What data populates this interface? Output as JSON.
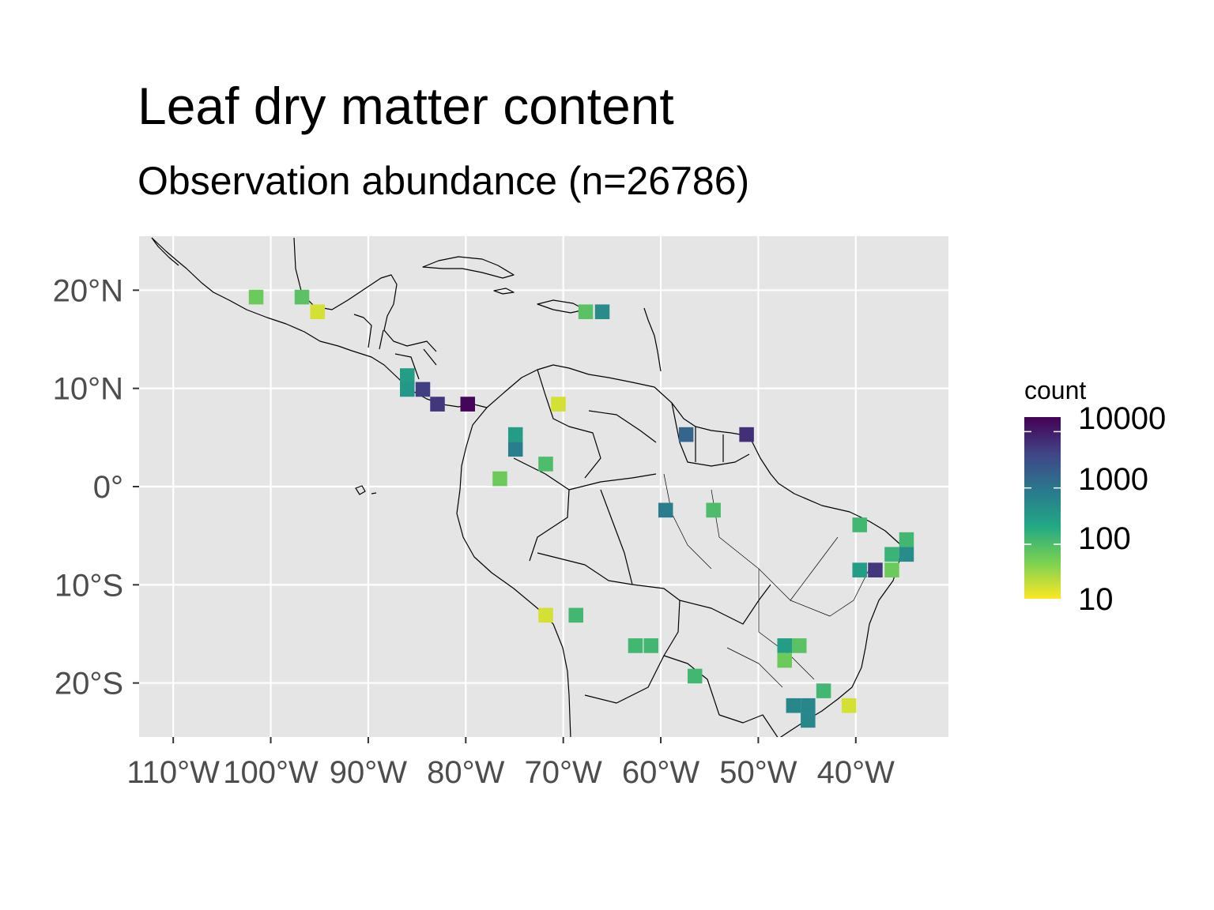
{
  "title": "Leaf dry matter content",
  "subtitle": "Observation abundance (n=26786)",
  "map": {
    "lon_range": [
      -113.5,
      -30.5
    ],
    "lat_range": [
      -25.5,
      25.5
    ],
    "lon_ticks": [
      -110,
      -100,
      -90,
      -80,
      -70,
      -60,
      -50,
      -40
    ],
    "lon_tick_labels": [
      "110°W",
      "100°W",
      "90°W",
      "80°W",
      "70°W",
      "60°W",
      "50°W",
      "40°W"
    ],
    "lat_ticks": [
      20,
      10,
      0,
      -10,
      -20
    ],
    "lat_tick_labels": [
      "20°N",
      "10°N",
      "0°",
      "10°S",
      "20°S"
    ],
    "panel_background": "#e5e5e5",
    "grid_color": "#ffffff",
    "bin_size_deg": 1.5
  },
  "legend": {
    "title": "count",
    "labels": [
      "10000",
      "1000",
      "100",
      "10"
    ],
    "scale": "log10",
    "range": [
      5,
      10000
    ],
    "colors": [
      "#fde725",
      "#7ad151",
      "#22a884",
      "#2a788e",
      "#414487",
      "#440154"
    ]
  },
  "chart_data": {
    "type": "heatmap",
    "title": "Leaf dry matter content",
    "subtitle": "Observation abundance (n=26786)",
    "fill": "count",
    "bins": [
      {
        "lon": -101.5,
        "lat": 19.3,
        "count": 30
      },
      {
        "lon": -96.8,
        "lat": 19.3,
        "count": 40
      },
      {
        "lon": -95.2,
        "lat": 17.8,
        "count": 8
      },
      {
        "lon": -67.7,
        "lat": 17.8,
        "count": 40
      },
      {
        "lon": -66.0,
        "lat": 17.8,
        "count": 250
      },
      {
        "lon": -86.0,
        "lat": 11.3,
        "count": 150
      },
      {
        "lon": -86.0,
        "lat": 9.9,
        "count": 180
      },
      {
        "lon": -84.4,
        "lat": 9.9,
        "count": 2500
      },
      {
        "lon": -82.9,
        "lat": 8.4,
        "count": 3000
      },
      {
        "lon": -79.8,
        "lat": 8.4,
        "count": 9000
      },
      {
        "lon": -70.5,
        "lat": 8.4,
        "count": 8
      },
      {
        "lon": -74.9,
        "lat": 5.3,
        "count": 150
      },
      {
        "lon": -74.9,
        "lat": 3.8,
        "count": 400
      },
      {
        "lon": -71.8,
        "lat": 2.3,
        "count": 50
      },
      {
        "lon": -76.5,
        "lat": 0.8,
        "count": 30
      },
      {
        "lon": -57.4,
        "lat": 5.3,
        "count": 800
      },
      {
        "lon": -51.2,
        "lat": 5.3,
        "count": 3500
      },
      {
        "lon": -59.5,
        "lat": -2.4,
        "count": 400
      },
      {
        "lon": -54.6,
        "lat": -2.4,
        "count": 50
      },
      {
        "lon": -39.6,
        "lat": -3.9,
        "count": 60
      },
      {
        "lon": -34.8,
        "lat": -5.4,
        "count": 60
      },
      {
        "lon": -36.3,
        "lat": -6.9,
        "count": 70
      },
      {
        "lon": -34.8,
        "lat": -6.9,
        "count": 250
      },
      {
        "lon": -39.6,
        "lat": -8.5,
        "count": 150
      },
      {
        "lon": -38.0,
        "lat": -8.5,
        "count": 3000
      },
      {
        "lon": -36.3,
        "lat": -8.5,
        "count": 30
      },
      {
        "lon": -71.8,
        "lat": -13.1,
        "count": 8
      },
      {
        "lon": -68.7,
        "lat": -13.1,
        "count": 60
      },
      {
        "lon": -62.6,
        "lat": -16.2,
        "count": 60
      },
      {
        "lon": -61.0,
        "lat": -16.2,
        "count": 60
      },
      {
        "lon": -47.3,
        "lat": -16.2,
        "count": 150
      },
      {
        "lon": -45.8,
        "lat": -16.2,
        "count": 40
      },
      {
        "lon": -47.3,
        "lat": -17.7,
        "count": 30
      },
      {
        "lon": -56.5,
        "lat": -19.3,
        "count": 60
      },
      {
        "lon": -43.3,
        "lat": -20.8,
        "count": 60
      },
      {
        "lon": -46.4,
        "lat": -22.3,
        "count": 300
      },
      {
        "lon": -44.9,
        "lat": -22.3,
        "count": 300
      },
      {
        "lon": -44.9,
        "lat": -23.8,
        "count": 300
      },
      {
        "lon": -40.7,
        "lat": -22.3,
        "count": 8
      }
    ]
  }
}
